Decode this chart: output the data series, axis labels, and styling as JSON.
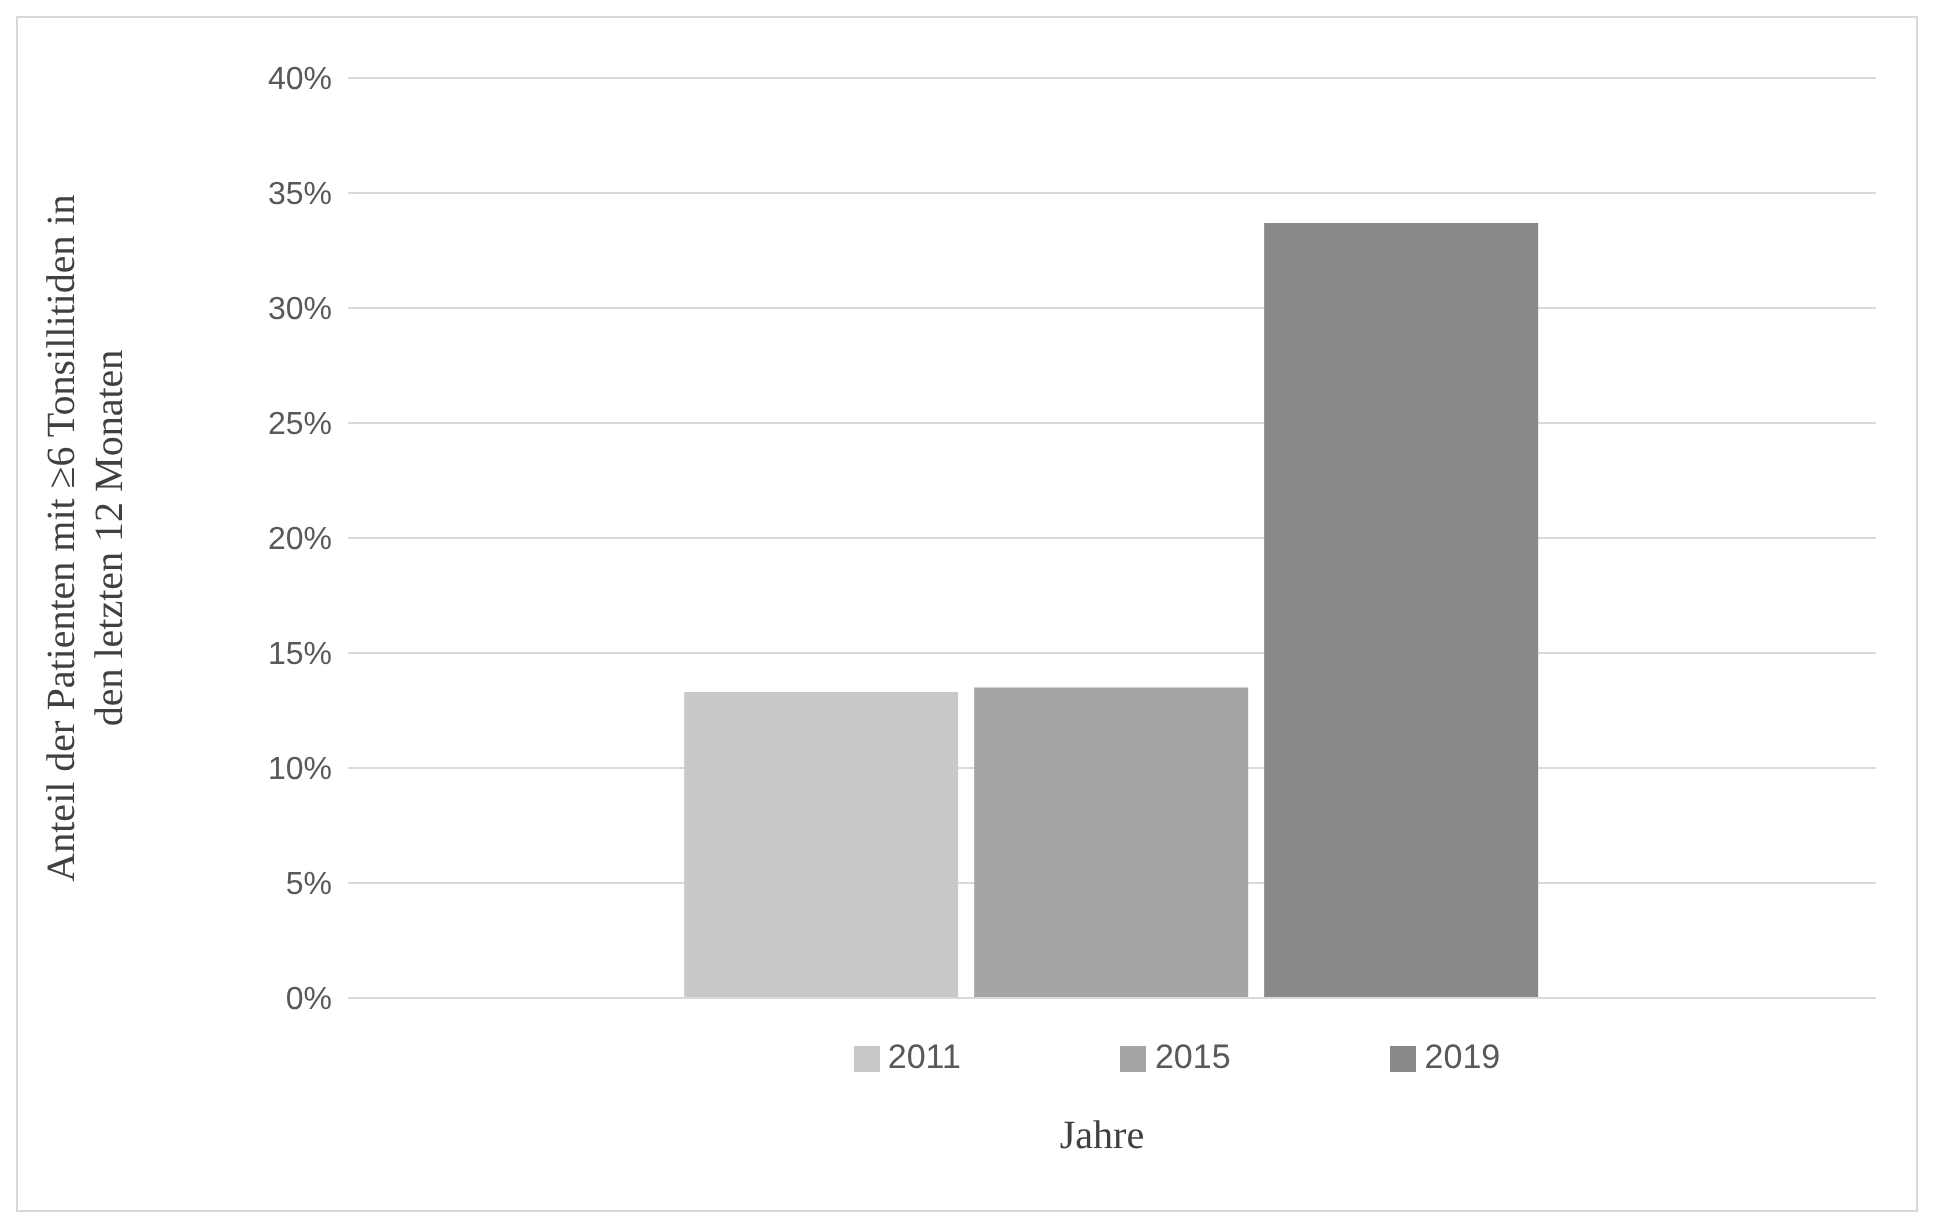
{
  "chart_data": {
    "type": "bar",
    "categories": [
      null
    ],
    "series": [
      {
        "name": "2011",
        "color": "#c9c9c9",
        "values": [
          13.3
        ]
      },
      {
        "name": "2015",
        "color": "#a5a5a5",
        "values": [
          13.5
        ]
      },
      {
        "name": "2019",
        "color": "#898989",
        "values": [
          33.7
        ]
      }
    ],
    "xlabel": "Jahre",
    "ylabel": "Anteil der Patienten mit ≥6 Tonsillitiden in den letzten 12 Monaten",
    "ylim": [
      0,
      40
    ],
    "yticks": [
      {
        "value": 0,
        "label": "0%"
      },
      {
        "value": 5,
        "label": "5%"
      },
      {
        "value": 10,
        "label": "10%"
      },
      {
        "value": 15,
        "label": "15%"
      },
      {
        "value": 20,
        "label": "20%"
      },
      {
        "value": 25,
        "label": "25%"
      },
      {
        "value": 30,
        "label": "30%"
      },
      {
        "value": 35,
        "label": "35%"
      },
      {
        "value": 40,
        "label": "40%"
      }
    ],
    "grid": "y",
    "legend": "bottom"
  }
}
